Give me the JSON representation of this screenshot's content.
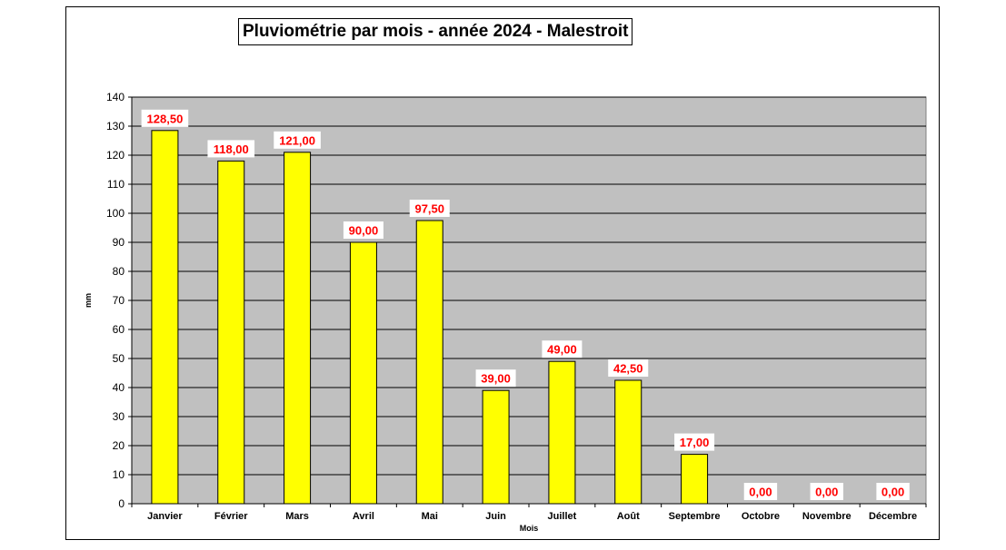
{
  "chart_data": {
    "type": "bar",
    "title": "Pluviométrie par mois - année 2024 - Malestroit",
    "xlabel": "Mois",
    "ylabel": "mm",
    "ylim": [
      0,
      140
    ],
    "yticks": [
      0,
      10,
      20,
      30,
      40,
      50,
      60,
      70,
      80,
      90,
      100,
      110,
      120,
      130,
      140
    ],
    "grid": true,
    "categories": [
      "Janvier",
      "Février",
      "Mars",
      "Avril",
      "Mai",
      "Juin",
      "Juillet",
      "Août",
      "Septembre",
      "Octobre",
      "Novembre",
      "Décembre"
    ],
    "values": [
      128.5,
      118.0,
      121.0,
      90.0,
      97.5,
      39.0,
      49.0,
      42.5,
      17.0,
      0.0,
      0.0,
      0.0
    ],
    "data_labels": [
      "128,50",
      "118,00",
      "121,00",
      "90,00",
      "97,50",
      "39,00",
      "49,00",
      "42,50",
      "17,00",
      "0,00",
      "0,00",
      "0,00"
    ],
    "colors": {
      "bar_fill": "#ffff00",
      "bar_stroke": "#000000",
      "plot_background": "#c0c0c0",
      "data_label_text": "#ff0000",
      "data_label_background": "#ffffff"
    }
  }
}
